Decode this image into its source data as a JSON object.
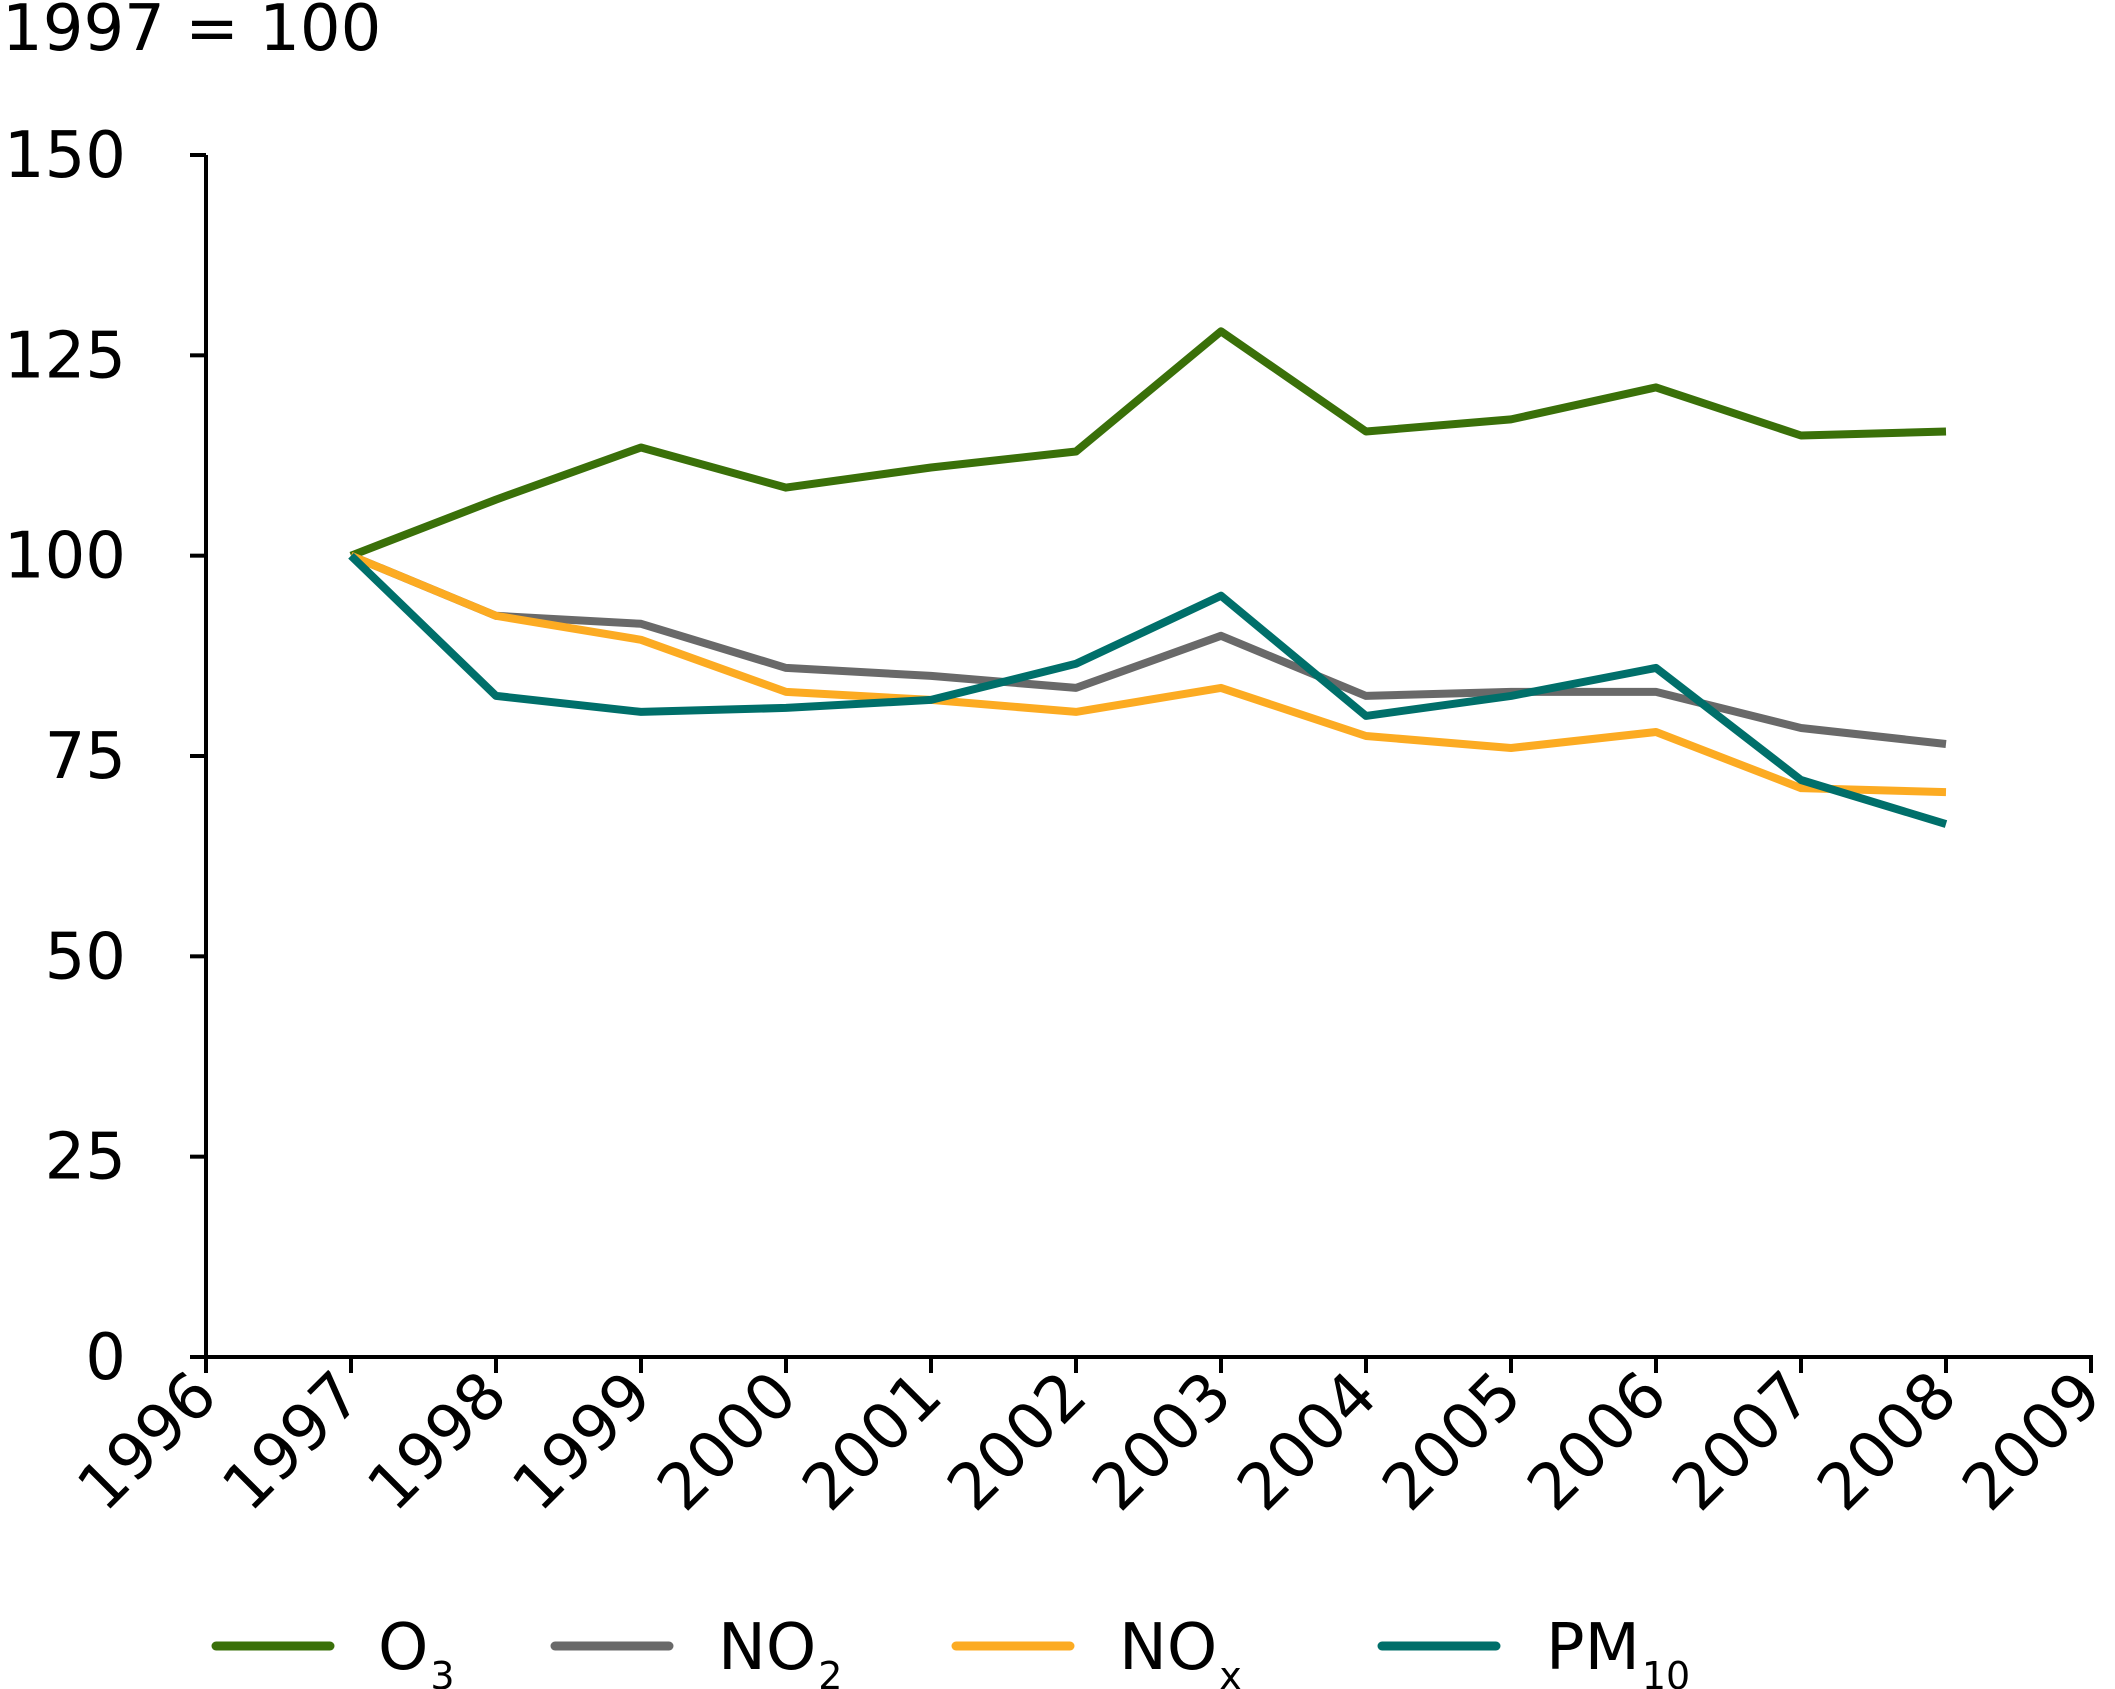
{
  "chart_data": {
    "type": "line",
    "ylabel": "1997 = 100",
    "xlabel": "",
    "title": "",
    "x": [
      1997,
      1998,
      1999,
      2000,
      2001,
      2002,
      2003,
      2004,
      2005,
      2006,
      2007,
      2008
    ],
    "xlim": [
      1996,
      2009
    ],
    "ylim": [
      0,
      150
    ],
    "xticks": [
      "1996",
      "1997",
      "1998",
      "1999",
      "2000",
      "2001",
      "2002",
      "2003",
      "2004",
      "2005",
      "2006",
      "2007",
      "2008",
      "2009"
    ],
    "yticks": [
      "0",
      "25",
      "50",
      "75",
      "100",
      "125",
      "150"
    ],
    "grid": false,
    "legend_position": "bottom",
    "series": [
      {
        "name": "O",
        "sub": "3",
        "color": "#3a7009",
        "values": [
          100,
          107,
          113.5,
          108.5,
          111,
          113,
          128,
          115.5,
          117,
          121,
          115,
          115.5
        ]
      },
      {
        "name": "NO",
        "sub": "2",
        "color": "#696969",
        "values": [
          100,
          92.5,
          91.5,
          86,
          85,
          83.5,
          90,
          82.5,
          83,
          83,
          78.5,
          76.5
        ]
      },
      {
        "name": "NO",
        "sub": "x",
        "color": "#fcab22",
        "values": [
          100,
          92.5,
          89.5,
          83,
          82,
          80.5,
          83.5,
          77.5,
          76,
          78,
          71,
          70.5
        ]
      },
      {
        "name": "PM",
        "sub": "10",
        "color": "#006f6a",
        "values": [
          100,
          82.5,
          80.5,
          81,
          82,
          86.5,
          95,
          80,
          82.5,
          86,
          72,
          66.5
        ]
      }
    ]
  }
}
